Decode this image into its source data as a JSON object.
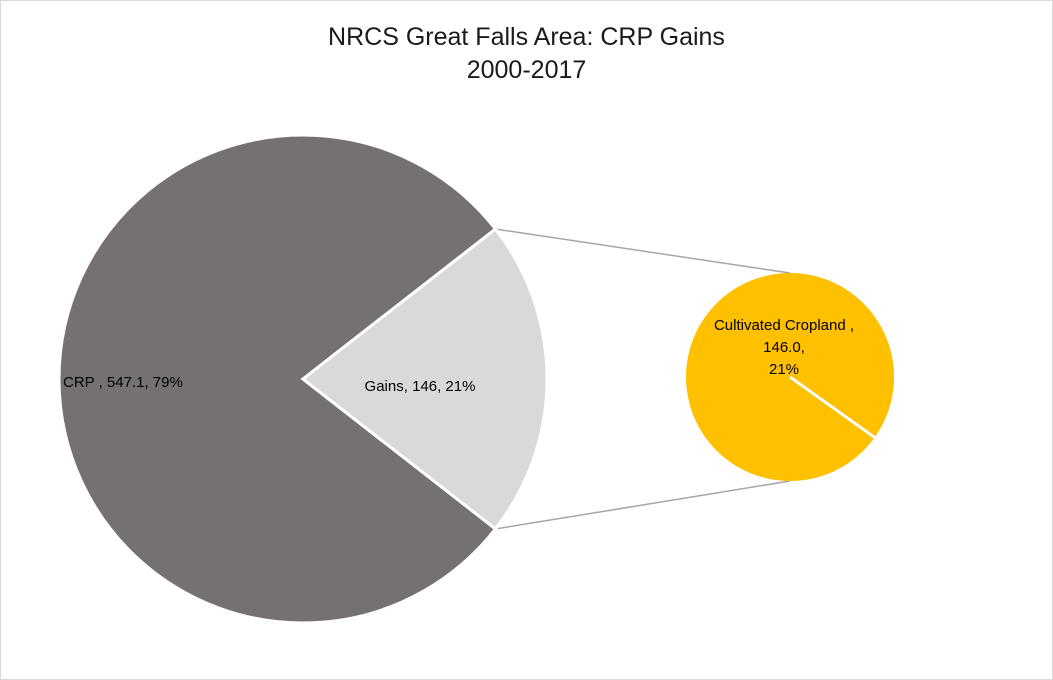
{
  "chart_data": {
    "type": "pie",
    "subtype": "pie-of-pie",
    "title_line1": "NRCS Great Falls Area: CRP Gains",
    "title_line2": "2000-2017",
    "primary": {
      "slices": [
        {
          "name": "CRP ",
          "value": 547.1,
          "percent": 79,
          "label": "CRP , 547.1, 79%",
          "color": "#757171"
        },
        {
          "name": "Gains",
          "value": 146,
          "percent": 21,
          "label": "Gains, 146, 21%",
          "color": "#d9d9d9"
        }
      ]
    },
    "secondary": {
      "slices": [
        {
          "name": "Cultivated Cropland ",
          "value": 146.0,
          "percent": 21,
          "label_lines": [
            "Cultivated Cropland ,",
            "146.0,",
            "21%"
          ],
          "color": "#ffc000"
        }
      ]
    },
    "connector_color": "#a6a6a6",
    "legend": "none"
  }
}
